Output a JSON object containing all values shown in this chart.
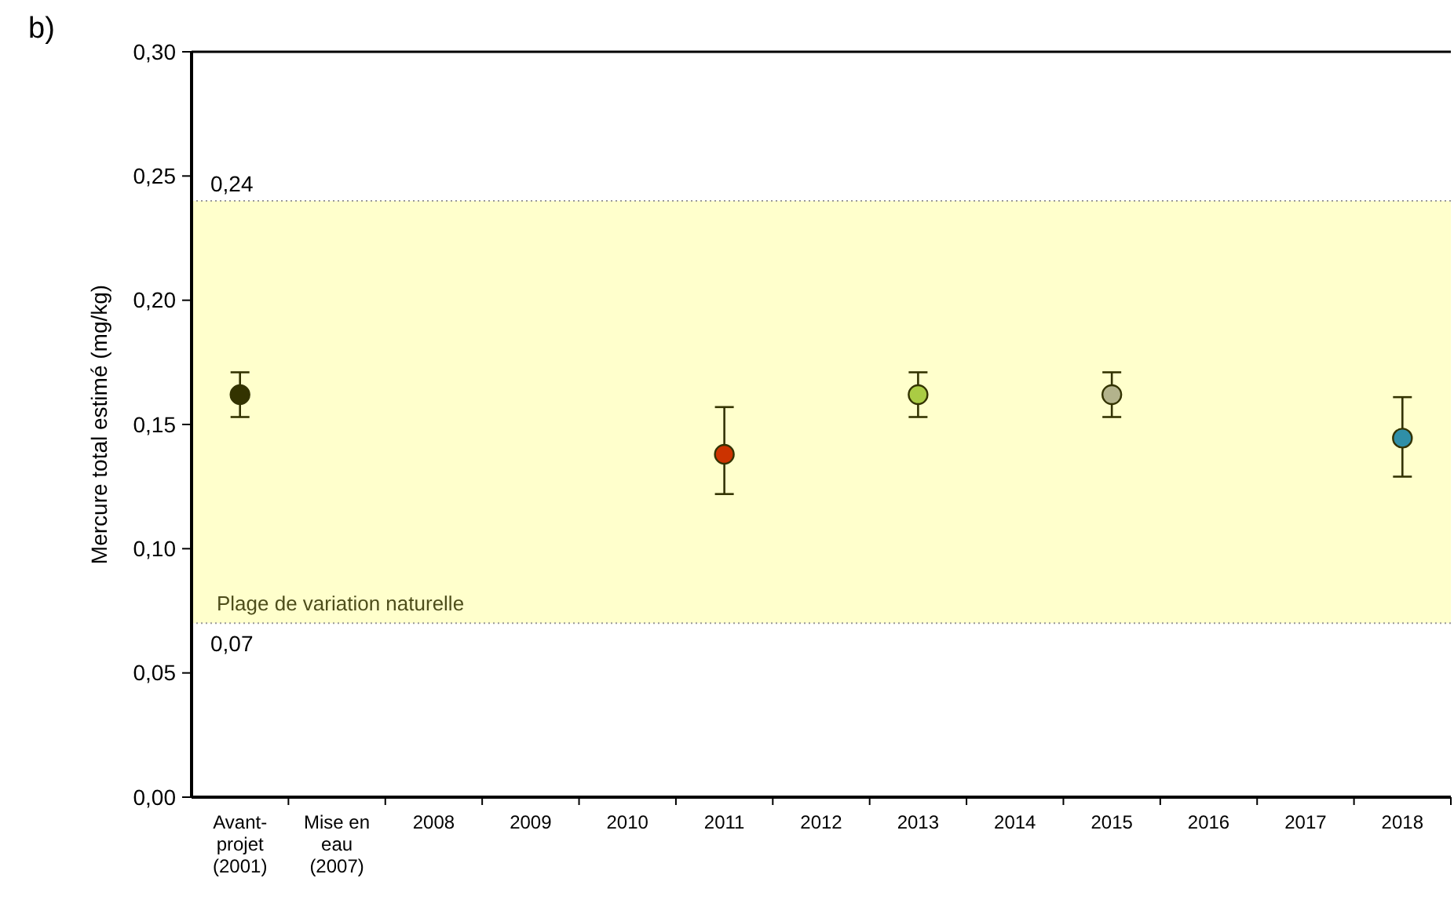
{
  "chart_data": {
    "type": "scatter",
    "title": "b)",
    "ylabel": "Mercure total estimé (mg/kg)",
    "categories": [
      "Avant-\nprojet\n(2001)",
      "Mise en\neau\n(2007)",
      "2008",
      "2009",
      "2010",
      "2011",
      "2012",
      "2013",
      "2014",
      "2015",
      "2016",
      "2017",
      "2018"
    ],
    "values": [
      0.162,
      null,
      null,
      null,
      null,
      0.138,
      null,
      0.162,
      null,
      0.162,
      null,
      null,
      0.1445
    ],
    "errors": [
      [
        0.153,
        0.171
      ],
      null,
      null,
      null,
      null,
      [
        0.122,
        0.157
      ],
      null,
      [
        0.153,
        0.171
      ],
      null,
      [
        0.153,
        0.171
      ],
      null,
      null,
      [
        0.129,
        0.161
      ]
    ],
    "colors": [
      "#333300",
      null,
      null,
      null,
      null,
      "#cc3300",
      null,
      "#aacc44",
      null,
      "#b3b38c",
      null,
      null,
      "#2f8fa8"
    ],
    "marker": "circle",
    "ylim": [
      0,
      0.3
    ],
    "yticks": [
      {
        "value": 0,
        "label": "0,00"
      },
      {
        "value": 0.05,
        "label": "0,05"
      },
      {
        "value": 0.1,
        "label": "0,10"
      },
      {
        "value": 0.15,
        "label": "0,15"
      },
      {
        "value": 0.2,
        "label": "0,20"
      },
      {
        "value": 0.25,
        "label": "0,25"
      },
      {
        "value": 0.3,
        "label": "0,30"
      }
    ],
    "grid": false,
    "bands": [
      {
        "axis": "y",
        "from": 0.07,
        "to": 0.24,
        "label": "Plage de variation naturelle",
        "color": "#ffffcc"
      }
    ],
    "ref_lines": [
      {
        "axis": "y",
        "value": 0.24,
        "label": "0,24",
        "color": "#999999",
        "line_style": "dotted"
      },
      {
        "axis": "y",
        "value": 0.07,
        "label": "0,07",
        "color": "#999999",
        "line_style": "dotted"
      }
    ]
  }
}
